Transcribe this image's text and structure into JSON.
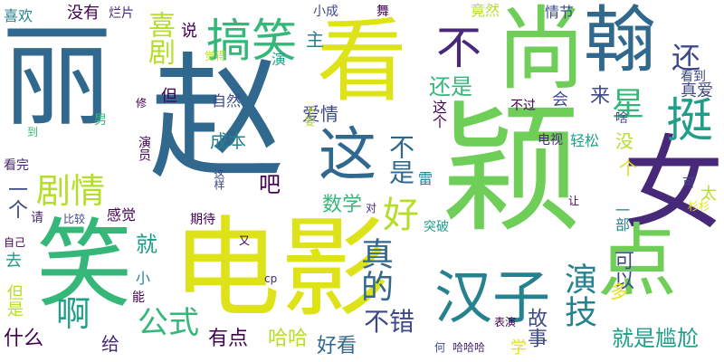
{
  "words": [
    {
      "text": "赵",
      "color": "#31688e"
    },
    {
      "text": "颖",
      "color": "#6ece58"
    },
    {
      "text": "丽",
      "color": "#31688e"
    },
    {
      "text": "电影",
      "color": "#dde318"
    },
    {
      "text": "看",
      "color": "#dde318"
    },
    {
      "text": "尚",
      "color": "#6ece58"
    },
    {
      "text": "笑",
      "color": "#35b779"
    },
    {
      "text": "女",
      "color": "#482878"
    },
    {
      "text": "翰",
      "color": "#31688e"
    },
    {
      "text": "点",
      "color": "#6ece58"
    },
    {
      "text": "这",
      "color": "#31688e"
    },
    {
      "text": "不",
      "color": "#482878"
    },
    {
      "text": "汉子",
      "color": "#26828e"
    },
    {
      "text": "挺",
      "color": "#1f9e89"
    },
    {
      "text": "搞笑",
      "color": "#35b779"
    },
    {
      "text": "剧情",
      "color": "#b5de2b"
    },
    {
      "text": "喜剧",
      "color": "#b5de2b"
    },
    {
      "text": "还",
      "color": "#3e4989"
    },
    {
      "text": "星",
      "color": "#35b779"
    },
    {
      "text": "演技",
      "color": "#26828e"
    },
    {
      "text": "好",
      "color": "#b5de2b"
    },
    {
      "text": "真的",
      "color": "#31688e"
    },
    {
      "text": "公式",
      "color": "#35b779"
    },
    {
      "text": "不是",
      "color": "#31688e"
    },
    {
      "text": "啊",
      "color": "#1f9e89"
    },
    {
      "text": "不错",
      "color": "#3e4989"
    },
    {
      "text": "就是尴尬",
      "color": "#1f9e89"
    },
    {
      "text": "有点",
      "color": "#440154"
    },
    {
      "text": "哈哈",
      "color": "#b5de2b"
    },
    {
      "text": "好看",
      "color": "#31688e"
    },
    {
      "text": "还是",
      "color": "#35b779"
    },
    {
      "text": "数学",
      "color": "#35b779"
    },
    {
      "text": "就",
      "color": "#1f9e89"
    },
    {
      "text": "可以",
      "color": "#3e4989"
    },
    {
      "text": "一个",
      "color": "#3e4989"
    },
    {
      "text": "什么",
      "color": "#440154"
    },
    {
      "text": "给",
      "color": "#482878"
    },
    {
      "text": "故事",
      "color": "#3e4989"
    },
    {
      "text": "多",
      "color": "#dde318"
    },
    {
      "text": "吧",
      "color": "#440154"
    },
    {
      "text": "成本",
      "color": "#26828e"
    },
    {
      "text": "爱情",
      "color": "#3e4989"
    },
    {
      "text": "主",
      "color": "#26828e"
    },
    {
      "text": "来",
      "color": "#3e4989"
    },
    {
      "text": "没",
      "color": "#b5de2b"
    },
    {
      "text": "个",
      "color": "#dde318"
    },
    {
      "text": "太",
      "color": "#b5de2b"
    },
    {
      "text": "一部",
      "color": "#26828e"
    },
    {
      "text": "真爱",
      "color": "#3e4989"
    },
    {
      "text": "喜欢",
      "color": "#26828e"
    },
    {
      "text": "没有",
      "color": "#440154"
    },
    {
      "text": "烂片",
      "color": "#482878"
    },
    {
      "text": "小成",
      "color": "#3e4989"
    },
    {
      "text": "舞",
      "color": "#440154"
    },
    {
      "text": "竟然",
      "color": "#b5de2b"
    },
    {
      "text": "情节",
      "color": "#3e4989"
    },
    {
      "text": "说",
      "color": "#440154"
    },
    {
      "text": "觉得",
      "color": "#b5de2b"
    },
    {
      "text": "演",
      "color": "#1f9e89"
    },
    {
      "text": "看到",
      "color": "#3e4989"
    },
    {
      "text": "但",
      "color": "#440154"
    },
    {
      "text": "自然",
      "color": "#3e4989"
    },
    {
      "text": "会",
      "color": "#3e4989"
    },
    {
      "text": "不过",
      "color": "#440154"
    },
    {
      "text": "修",
      "color": "#440154"
    },
    {
      "text": "男",
      "color": "#35b779"
    },
    {
      "text": "到",
      "color": "#35b779"
    },
    {
      "text": "看完",
      "color": "#482878"
    },
    {
      "text": "演员",
      "color": "#440154"
    },
    {
      "text": "不要",
      "color": "#b5de2b"
    },
    {
      "text": "电视",
      "color": "#482878"
    },
    {
      "text": "轻松",
      "color": "#1f9e89"
    },
    {
      "text": "啥",
      "color": "#3e4989"
    },
    {
      "text": "这样",
      "color": "#3e4989"
    },
    {
      "text": "对",
      "color": "#482878"
    },
    {
      "text": "请",
      "color": "#482878"
    },
    {
      "text": "比较",
      "color": "#3e4989"
    },
    {
      "text": "感觉",
      "color": "#440154"
    },
    {
      "text": "期待",
      "color": "#440154"
    },
    {
      "text": "突破",
      "color": "#1f9e89"
    },
    {
      "text": "让",
      "color": "#440154"
    },
    {
      "text": "可",
      "color": "#3e4989"
    },
    {
      "text": "杉杉",
      "color": "#dde318"
    },
    {
      "text": "自己",
      "color": "#440154"
    },
    {
      "text": "去",
      "color": "#1f9e89"
    },
    {
      "text": "又",
      "color": "#440154"
    },
    {
      "text": "小",
      "color": "#26828e"
    },
    {
      "text": "cp",
      "color": "#482878"
    },
    {
      "text": "能",
      "color": "#440154"
    },
    {
      "text": "但是",
      "color": "#b5de2b"
    },
    {
      "text": "表演",
      "color": "#440154"
    },
    {
      "text": "何",
      "color": "#3e4989"
    },
    {
      "text": "哈哈哈",
      "color": "#482878"
    },
    {
      "text": "学",
      "color": "#dde318"
    },
    {
      "text": "雷",
      "color": "#26828e"
    },
    {
      "text": "这个",
      "color": "#440154"
    }
  ]
}
